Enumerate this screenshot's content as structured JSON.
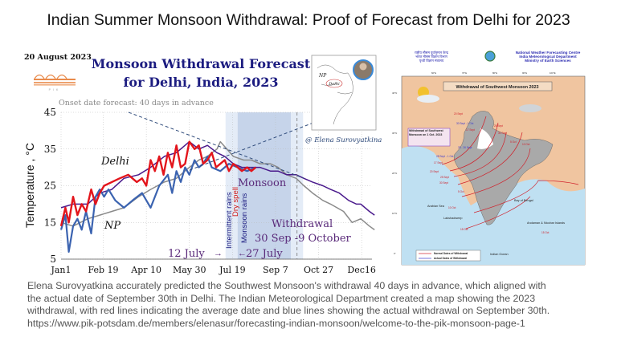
{
  "slide": {
    "title": "Indian Summer Monsoon Withdrawal: Proof of Forecast from Delhi for 2023",
    "caption_lines": [
      "Elena Surovyatkina accurately predicted the Southwest Monsoon's withdrawal 40 days in advance, which aligned with",
      "the actual date of September 30th in Delhi. The Indian Meteorological Department created a map showing the 2023",
      "withdrawal, with red lines indicating the average date and blue lines showing the actual withdrawal on September 30th.",
      "https://www.pik-potsdam.de/members/elenasur/forecasting-indian-monsoon/welcome-to-the-pik-monsoon-page-1"
    ]
  },
  "chart_data": {
    "type": "line",
    "date": "20 August 2023",
    "logo_text": "PIK",
    "title": "Monsoon Withdrawal Forecast",
    "subtitle": "for Delhi, India, 2023",
    "note": "Onset date forecast: 40 days in advance",
    "credit": "@ Elena Surovyatkina",
    "ylabel": "Temperature , °C",
    "xlabel": "",
    "ylim": [
      5,
      45
    ],
    "yticks": [
      "45",
      "35",
      "25",
      "15",
      "5"
    ],
    "ytick_values": [
      45,
      35,
      25,
      15,
      5
    ],
    "xticks": [
      "Jan1",
      "Feb 19",
      "Apr 10",
      "May 30",
      "Jul 19",
      "Sep 7",
      "Oct 27",
      "Dec16"
    ],
    "xtick_dates": [
      "01-01",
      "02-19",
      "04-10",
      "05-30",
      "07-19",
      "09-07",
      "10-27",
      "12-16"
    ],
    "grid": true,
    "inset_labels": {
      "np": "NP",
      "delhi": "Delhi"
    },
    "labels": {
      "delhi": "Delhi",
      "np": "NP",
      "monsoon": "Monsoon",
      "intermittent": "Intermittent rains",
      "dry": "Dry spell",
      "monsoon_rains": "Monsoon rains",
      "withdrawal": "Withdrawal",
      "withdrawal_range": "30 Sep -9 October",
      "start": "12 July",
      "end": "27 July"
    },
    "bands": [
      {
        "from": "07-11",
        "to": "07-25",
        "shade": "light"
      },
      {
        "from": "07-25",
        "to": "09-25",
        "shade": "dark"
      },
      {
        "from": "09-25",
        "to": "10-09",
        "shade": "light"
      }
    ],
    "withdrawal_marker": "10-02",
    "series": [
      {
        "name": "Delhi",
        "color": "#e3151c",
        "width": 2.4,
        "x": [
          "01-01",
          "01-06",
          "01-10",
          "01-15",
          "01-20",
          "01-25",
          "01-30",
          "02-05",
          "02-10",
          "02-15",
          "02-20",
          "03-01",
          "03-10",
          "03-20",
          "03-30",
          "04-05",
          "04-10",
          "04-15",
          "04-20",
          "04-25",
          "04-30",
          "05-05",
          "05-10",
          "05-15",
          "05-20",
          "05-25",
          "05-30",
          "06-05",
          "06-10",
          "06-15",
          "06-20",
          "06-25",
          "06-30",
          "07-05",
          "07-10",
          "07-15",
          "07-20",
          "07-25",
          "07-30",
          "08-05",
          "08-10",
          "08-15"
        ],
        "y": [
          14,
          19,
          15,
          22,
          17,
          20,
          18,
          24,
          20,
          23,
          25,
          26,
          27,
          28,
          26,
          27,
          25,
          32,
          29,
          33,
          28,
          34,
          30,
          36,
          30,
          31,
          37,
          35,
          36,
          31,
          32,
          34,
          30,
          31,
          32,
          29,
          31,
          30,
          29,
          30,
          29,
          30
        ]
      },
      {
        "name": "NP",
        "color": "#3b63b0",
        "width": 2.2,
        "x": [
          "01-01",
          "01-06",
          "01-10",
          "01-15",
          "01-20",
          "01-25",
          "01-30",
          "02-05",
          "02-10",
          "02-15",
          "02-20",
          "02-25",
          "03-05",
          "03-15",
          "03-25",
          "04-05",
          "04-15",
          "04-25",
          "05-05",
          "05-10",
          "05-15",
          "05-20",
          "05-25",
          "05-30",
          "06-05",
          "06-10",
          "06-15",
          "06-20",
          "06-25",
          "07-05",
          "07-15",
          "07-25",
          "08-05",
          "08-15"
        ],
        "y": [
          13,
          17,
          7,
          14,
          16,
          13,
          18,
          12,
          22,
          24,
          22,
          24,
          21,
          19,
          21,
          23,
          19,
          25,
          28,
          23,
          29,
          26,
          30,
          28,
          32,
          30,
          31,
          33,
          30,
          29,
          31,
          30,
          29,
          30
        ]
      },
      {
        "name": "",
        "color": "#4a1a8c",
        "width": 1.5,
        "x": [
          "01-01",
          "01-15",
          "02-01",
          "02-15",
          "03-01",
          "03-15",
          "04-01",
          "04-15",
          "05-01",
          "05-15",
          "05-30",
          "06-10",
          "06-20",
          "07-01",
          "07-10",
          "07-20",
          "07-30",
          "08-10",
          "08-20",
          "09-01",
          "09-10",
          "09-20",
          "10-01",
          "10-10",
          "10-20",
          "11-01",
          "11-10",
          "11-20",
          "12-01",
          "12-10",
          "12-15",
          "12-25",
          "12-31"
        ],
        "y": [
          19,
          20,
          20,
          23,
          24,
          27,
          28,
          30,
          33,
          34,
          37,
          35,
          36,
          34,
          33,
          31,
          30,
          30,
          30,
          29,
          29,
          28,
          28,
          27,
          26,
          25,
          24,
          23,
          21,
          20,
          20,
          18,
          17
        ]
      },
      {
        "name": "",
        "color": "#8a8a8a",
        "width": 1.5,
        "x": [
          "01-01",
          "01-15",
          "02-01",
          "02-15",
          "03-01",
          "03-15",
          "04-01",
          "04-15",
          "05-01",
          "05-15",
          "05-30",
          "06-10",
          "06-20",
          "07-01",
          "07-05",
          "07-20",
          "08-01",
          "08-10",
          "08-20",
          "09-01",
          "09-10",
          "09-20",
          "10-01",
          "10-10",
          "10-20",
          "11-01",
          "11-10",
          "11-25",
          "12-05",
          "12-15",
          "12-25",
          "12-31"
        ],
        "y": [
          15,
          14,
          16,
          17,
          18,
          19,
          22,
          24,
          26,
          27,
          30,
          32,
          33,
          35,
          37,
          33,
          32,
          32,
          31,
          31,
          30,
          28,
          27,
          25,
          23,
          21,
          20,
          18,
          15,
          16,
          14,
          13
        ]
      }
    ]
  },
  "map": {
    "header_hindi": [
      "राष्ट्रीय मौसम पूर्वानुमान केन्द्र",
      "भारत मौसम विज्ञान विभाग",
      "पृथ्वी विज्ञान मंत्रालय"
    ],
    "header_english": [
      "National Weather Forecasting Centre",
      "India Meteorological Department",
      "Ministry of Earth Sciences"
    ],
    "title": "Withdrawal of Southwest Monsoon 2023",
    "box_label": "Withdrawal of Southwest Monsoon on 1 Oct. 2023",
    "red_labels": [
      "20 Sept",
      "17 Sept",
      "25 Sept",
      "30 Sept",
      "5 Oct",
      "10 Oct",
      "17 Sept",
      "20 Sept",
      "25 Sept",
      "30 Sept",
      "5 Oct",
      "10 Oct",
      "15 Oct",
      "15 Oct"
    ],
    "blue_labels": [
      "30 Sept - 1 Oct",
      "25 - 26 Sept",
      "28 Sept - 1 Oct"
    ],
    "places": {
      "arabian_sea": "Arabian Sea",
      "bay": "Bay of Bengal",
      "lakshadweep": "Lakshadweep",
      "andaman": "Andaman & Nicobar Islands",
      "ocean": "Indian Ocean"
    },
    "lon_ticks": [
      "60°E",
      "70°E",
      "80°E",
      "90°E",
      "100°E"
    ],
    "lat_ticks": [
      "40°N",
      "30°N",
      "20°N",
      "10°N",
      "0°"
    ],
    "legend": [
      "Normal Dates of Withdrawal",
      "Actual Dates of Withdrawal"
    ],
    "colors": {
      "land": "#f0c5a0",
      "sea": "#bfe0f2",
      "india": "#a9a9a9",
      "normal": "#d0202a",
      "actual": "#3a3ad0"
    }
  }
}
